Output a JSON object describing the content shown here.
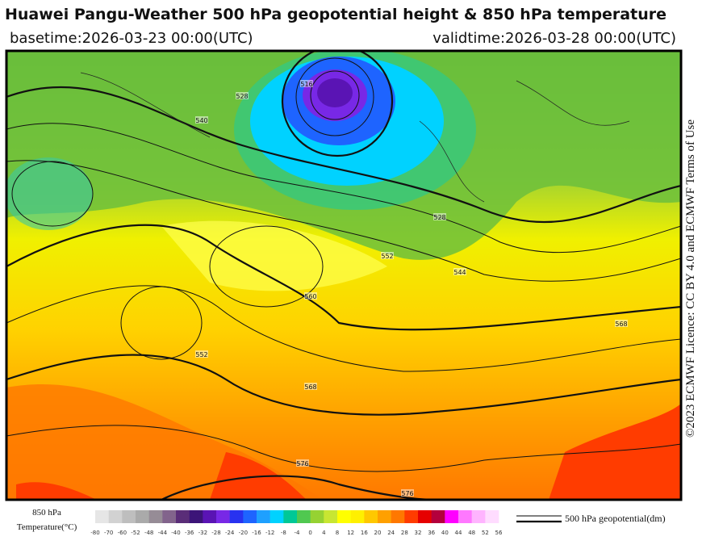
{
  "header": {
    "title": "Huawei Pangu-Weather 500 hPa geopotential height & 850 hPa temperature",
    "basetime": "basetime:2026-03-23 00:00(UTC)",
    "validtime": "validtime:2026-03-28 00:00(UTC)"
  },
  "licence": "©2023 ECMWF Licence: CC BY 4.0 and ECMWF Terms of Use",
  "contour_labels": [
    "516",
    "528",
    "540",
    "552",
    "560",
    "568",
    "576",
    "544",
    "528",
    "552",
    "568",
    "576"
  ],
  "colorbar": {
    "label_line1": "850 hPa",
    "label_line2": "Temperature(°C)",
    "ticks": [
      -80,
      -70,
      -60,
      -52,
      -48,
      -44,
      -40,
      -36,
      -32,
      -28,
      -24,
      -20,
      -16,
      -12,
      -8,
      -4,
      0,
      4,
      8,
      12,
      16,
      20,
      24,
      28,
      32,
      36,
      40,
      44,
      48,
      52,
      56
    ],
    "colors": [
      "#e6e6e6",
      "#d2d2d2",
      "#bebebe",
      "#aaaaaa",
      "#968c96",
      "#82648c",
      "#5a2d78",
      "#3c1478",
      "#5a14b4",
      "#7828e6",
      "#2832f0",
      "#1e64ff",
      "#1ea0ff",
      "#00d2ff",
      "#00c896",
      "#50c850",
      "#96d232",
      "#c8e632",
      "#ffff00",
      "#fff000",
      "#ffc800",
      "#ffa000",
      "#ff7800",
      "#ff3c00",
      "#e60000",
      "#b4003c",
      "#ff00ff",
      "#ff78ff",
      "#ffb4ff",
      "#ffdcff"
    ]
  },
  "line_legend": "500 hPa geopotential(dm)"
}
